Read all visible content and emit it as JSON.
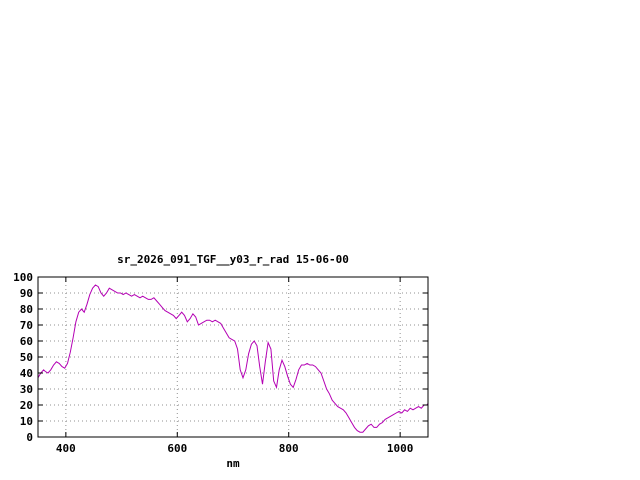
{
  "chart_data": {
    "type": "line",
    "title": "sr_2026_091_TGF__y03_r_rad 15-06-00",
    "xlabel": "nm",
    "ylabel": "",
    "xlim": [
      350,
      1050
    ],
    "ylim": [
      0,
      100
    ],
    "xticks": [
      400,
      600,
      800,
      1000
    ],
    "yticks": [
      0,
      10,
      20,
      30,
      40,
      50,
      60,
      70,
      80,
      90,
      100
    ],
    "grid": true,
    "legend_position": "none",
    "line_color": "#b400b4",
    "axis_color": "#000000",
    "grid_color": "#909090",
    "background_color": "#ffffff",
    "points": [
      [
        350,
        37
      ],
      [
        355,
        40
      ],
      [
        360,
        42
      ],
      [
        363,
        41
      ],
      [
        368,
        40
      ],
      [
        373,
        42
      ],
      [
        378,
        45
      ],
      [
        383,
        47
      ],
      [
        388,
        46
      ],
      [
        393,
        44
      ],
      [
        398,
        43
      ],
      [
        403,
        46
      ],
      [
        408,
        53
      ],
      [
        413,
        62
      ],
      [
        418,
        72
      ],
      [
        423,
        78
      ],
      [
        428,
        80
      ],
      [
        433,
        78
      ],
      [
        438,
        83
      ],
      [
        443,
        89
      ],
      [
        448,
        93
      ],
      [
        453,
        95
      ],
      [
        458,
        94
      ],
      [
        463,
        90
      ],
      [
        468,
        88
      ],
      [
        473,
        90
      ],
      [
        478,
        93
      ],
      [
        483,
        92
      ],
      [
        488,
        91
      ],
      [
        493,
        90
      ],
      [
        498,
        90
      ],
      [
        503,
        89
      ],
      [
        508,
        90
      ],
      [
        513,
        89
      ],
      [
        518,
        88
      ],
      [
        523,
        89
      ],
      [
        528,
        88
      ],
      [
        533,
        87
      ],
      [
        538,
        88
      ],
      [
        543,
        87
      ],
      [
        548,
        86
      ],
      [
        553,
        86
      ],
      [
        558,
        87
      ],
      [
        563,
        85
      ],
      [
        568,
        83
      ],
      [
        573,
        81
      ],
      [
        578,
        79
      ],
      [
        583,
        78
      ],
      [
        588,
        77
      ],
      [
        593,
        76
      ],
      [
        598,
        74
      ],
      [
        603,
        76
      ],
      [
        608,
        78
      ],
      [
        613,
        76
      ],
      [
        618,
        72
      ],
      [
        623,
        74
      ],
      [
        628,
        77
      ],
      [
        633,
        75
      ],
      [
        638,
        70
      ],
      [
        643,
        71
      ],
      [
        648,
        72
      ],
      [
        653,
        73
      ],
      [
        658,
        73
      ],
      [
        663,
        72
      ],
      [
        668,
        73
      ],
      [
        673,
        72
      ],
      [
        678,
        71
      ],
      [
        683,
        68
      ],
      [
        688,
        65
      ],
      [
        693,
        62
      ],
      [
        698,
        61
      ],
      [
        703,
        60
      ],
      [
        708,
        55
      ],
      [
        713,
        42
      ],
      [
        718,
        37
      ],
      [
        723,
        42
      ],
      [
        728,
        52
      ],
      [
        733,
        58
      ],
      [
        738,
        60
      ],
      [
        743,
        57
      ],
      [
        748,
        44
      ],
      [
        753,
        33
      ],
      [
        758,
        47
      ],
      [
        763,
        59
      ],
      [
        768,
        55
      ],
      [
        773,
        35
      ],
      [
        778,
        31
      ],
      [
        783,
        42
      ],
      [
        788,
        48
      ],
      [
        793,
        44
      ],
      [
        798,
        38
      ],
      [
        803,
        33
      ],
      [
        808,
        31
      ],
      [
        813,
        36
      ],
      [
        818,
        42
      ],
      [
        823,
        45
      ],
      [
        828,
        45
      ],
      [
        833,
        46
      ],
      [
        838,
        45
      ],
      [
        843,
        45
      ],
      [
        848,
        44
      ],
      [
        853,
        42
      ],
      [
        858,
        40
      ],
      [
        863,
        35
      ],
      [
        868,
        30
      ],
      [
        873,
        27
      ],
      [
        878,
        23
      ],
      [
        883,
        21
      ],
      [
        888,
        19
      ],
      [
        893,
        18
      ],
      [
        898,
        17
      ],
      [
        903,
        15
      ],
      [
        908,
        12
      ],
      [
        913,
        9
      ],
      [
        918,
        6
      ],
      [
        923,
        4
      ],
      [
        928,
        3
      ],
      [
        933,
        3
      ],
      [
        938,
        5
      ],
      [
        943,
        7
      ],
      [
        948,
        8
      ],
      [
        953,
        6
      ],
      [
        958,
        6
      ],
      [
        963,
        8
      ],
      [
        968,
        9
      ],
      [
        973,
        11
      ],
      [
        978,
        12
      ],
      [
        983,
        13
      ],
      [
        988,
        14
      ],
      [
        993,
        15
      ],
      [
        998,
        16
      ],
      [
        1003,
        15
      ],
      [
        1008,
        17
      ],
      [
        1013,
        16
      ],
      [
        1018,
        18
      ],
      [
        1023,
        17
      ],
      [
        1028,
        18
      ],
      [
        1033,
        19
      ],
      [
        1038,
        18
      ],
      [
        1043,
        20
      ],
      [
        1048,
        20
      ],
      [
        1050,
        21
      ]
    ]
  }
}
